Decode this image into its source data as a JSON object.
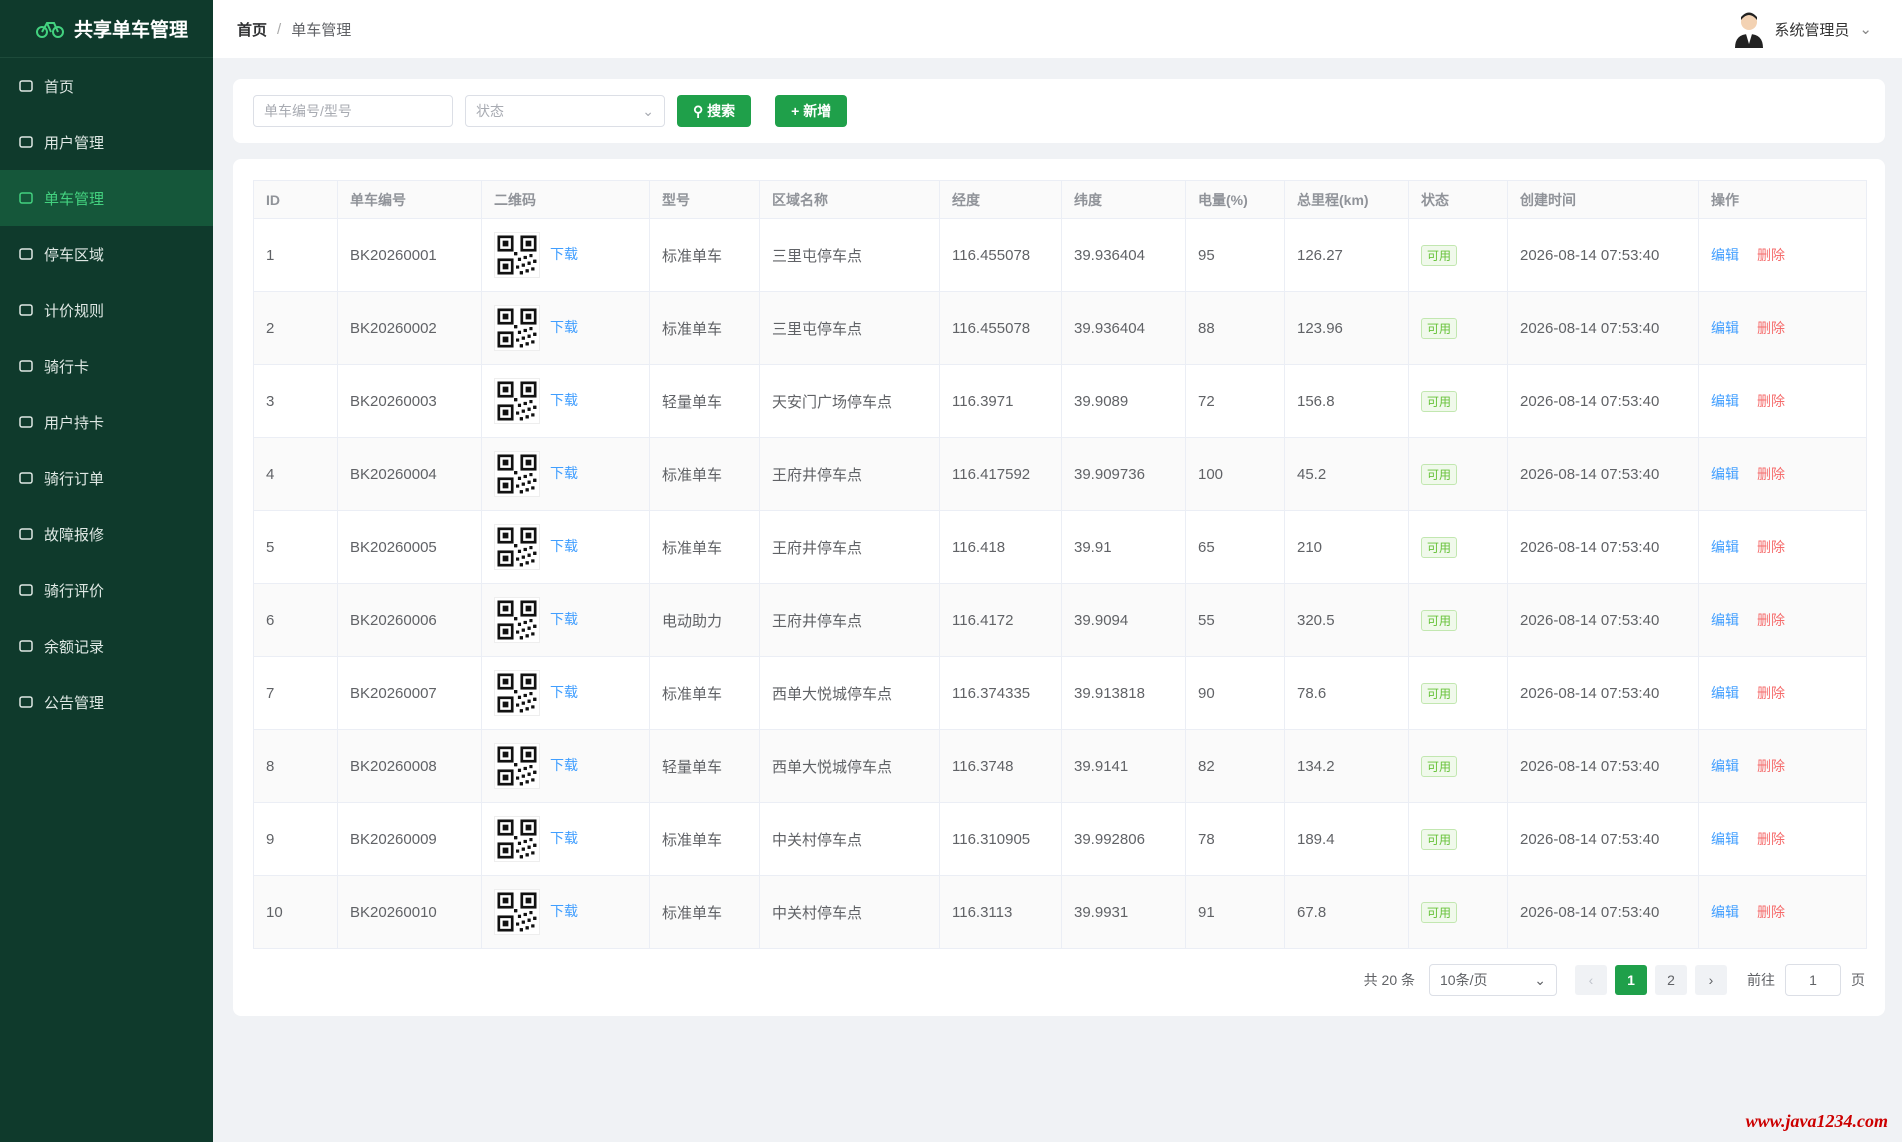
{
  "sidebar": {
    "title": "共享单车管理",
    "menu": [
      {
        "label": "首页"
      },
      {
        "label": "用户管理"
      },
      {
        "label": "单车管理",
        "active": true
      },
      {
        "label": "停车区域"
      },
      {
        "label": "计价规则"
      },
      {
        "label": "骑行卡"
      },
      {
        "label": "用户持卡"
      },
      {
        "label": "骑行订单"
      },
      {
        "label": "故障报修"
      },
      {
        "label": "骑行评价"
      },
      {
        "label": "余额记录"
      },
      {
        "label": "公告管理"
      }
    ]
  },
  "header": {
    "breadcrumb": [
      "首页",
      "单车管理"
    ],
    "user": "系统管理员"
  },
  "search": {
    "keyword_placeholder": "单车编号/型号",
    "status_placeholder": "状态",
    "search_button": "搜索",
    "add_button": "新增"
  },
  "table": {
    "columns": [
      "ID",
      "单车编号",
      "二维码",
      "型号",
      "区域名称",
      "经度",
      "纬度",
      "电量(%)",
      "总里程(km)",
      "状态",
      "创建时间",
      "操作"
    ],
    "rows": [
      [
        1,
        "BK20260001",
        "下载",
        "标准单车",
        "三里屯停车点",
        116.455078,
        39.936404,
        95,
        126.27,
        "可用",
        "2026-08-14 07:53:40",
        [
          "编辑",
          "删除"
        ]
      ],
      [
        2,
        "BK20260002",
        "下载",
        "标准单车",
        "三里屯停车点",
        116.455078,
        39.936404,
        88,
        123.96,
        "可用",
        "2026-08-14 07:53:40",
        [
          "编辑",
          "删除"
        ]
      ],
      [
        3,
        "BK20260003",
        "下载",
        "轻量单车",
        "天安门广场停车点",
        116.3971,
        39.9089,
        72,
        156.8,
        "可用",
        "2026-08-14 07:53:40",
        [
          "编辑",
          "删除"
        ]
      ],
      [
        4,
        "BK20260004",
        "下载",
        "标准单车",
        "王府井停车点",
        116.417592,
        39.909736,
        100,
        45.2,
        "可用",
        "2026-08-14 07:53:40",
        [
          "编辑",
          "删除"
        ]
      ],
      [
        5,
        "BK20260005",
        "下载",
        "标准单车",
        "王府井停车点",
        116.418,
        39.91,
        65,
        210,
        "可用",
        "2026-08-14 07:53:40",
        [
          "编辑",
          "删除"
        ]
      ],
      [
        6,
        "BK20260006",
        "下载",
        "电动助力",
        "王府井停车点",
        116.4172,
        39.9094,
        55,
        320.5,
        "可用",
        "2026-08-14 07:53:40",
        [
          "编辑",
          "删除"
        ]
      ],
      [
        7,
        "BK20260007",
        "下载",
        "标准单车",
        "西单大悦城停车点",
        116.374335,
        39.913818,
        90,
        78.6,
        "可用",
        "2026-08-14 07:53:40",
        [
          "编辑",
          "删除"
        ]
      ],
      [
        8,
        "BK20260008",
        "下载",
        "轻量单车",
        "西单大悦城停车点",
        116.3748,
        39.9141,
        82,
        134.2,
        "可用",
        "2026-08-14 07:53:40",
        [
          "编辑",
          "删除"
        ]
      ],
      [
        9,
        "BK20260009",
        "下载",
        "标准单车",
        "中关村停车点",
        116.310905,
        39.992806,
        78,
        189.4,
        "可用",
        "2026-08-14 07:53:40",
        [
          "编辑",
          "删除"
        ]
      ],
      [
        10,
        "BK20260010",
        "下载",
        "标准单车",
        "中关村停车点",
        116.3113,
        39.9931,
        91,
        67.8,
        "可用",
        "2026-08-14 07:53:40",
        [
          "编辑",
          "删除"
        ]
      ]
    ]
  },
  "pagination": {
    "total": "共 20 条",
    "page_size": "10条/页",
    "pages": [
      1,
      2
    ],
    "current": 1,
    "goto_label": "前往",
    "goto_value": 1,
    "goto_suffix": "页"
  },
  "watermark": "www.java1234.com"
}
